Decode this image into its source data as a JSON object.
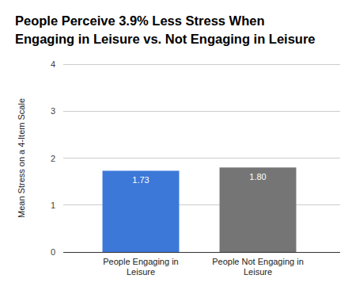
{
  "chart_data": {
    "type": "bar",
    "title": "People Perceive 3.9% Less Stress When Engaging in Leisure vs. Not Engaging in Leisure",
    "y_label": "Mean Stress on a 4-Item Scale",
    "categories": [
      "People Engaging in Leisure",
      "People Not Engaging in Leisure"
    ],
    "values": [
      1.73,
      1.8
    ],
    "value_labels": [
      "1.73",
      "1.80"
    ],
    "colors": [
      "#3c78d8",
      "#757575"
    ],
    "ylim": [
      0,
      4
    ],
    "yticks": [
      0,
      1,
      2,
      3,
      4
    ],
    "grid": true,
    "data_labels": true
  }
}
